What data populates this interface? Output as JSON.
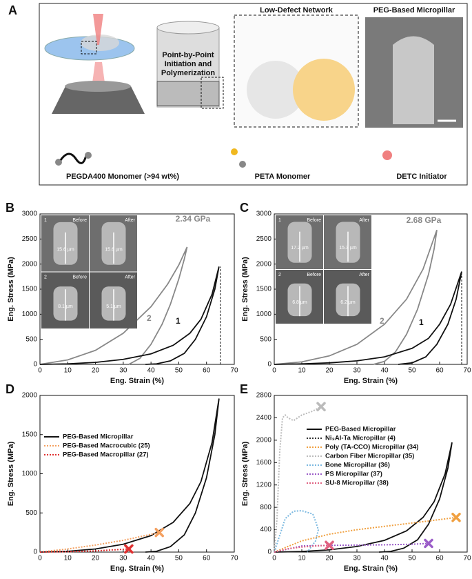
{
  "panel_a": {
    "label": "A",
    "texts": {
      "point_by_point": [
        "Point-by-Point",
        "Initiation and",
        "Polymerization"
      ],
      "network": "Low-Defect Network",
      "sem": "PEG-Based Micropillar",
      "pegda": "PEGDA400 Monomer (>94 wt%)",
      "peta": "PETA Monomer",
      "detc": "DETC Initiator"
    }
  },
  "chart_data": [
    {
      "type": "line",
      "label": "B",
      "xlabel": "Eng. Strain (%)",
      "ylabel": "Eng. Stress (MPa)",
      "xlim": [
        0,
        70
      ],
      "xticks": [
        0,
        10,
        20,
        30,
        40,
        50,
        60,
        70
      ],
      "ylim": [
        0,
        3000
      ],
      "yticks": [
        0,
        500,
        1000,
        1500,
        2000,
        2500,
        3000
      ],
      "annotation": "2.34 GPa",
      "vline": 65,
      "inset": {
        "rows": [
          {
            "index": "1",
            "before": "Before",
            "after": "After",
            "sizes": [
              "15.6 µm",
              "15.6 µm"
            ]
          },
          {
            "index": "2",
            "before": "Before",
            "after": "After",
            "sizes": [
              "8.1 µm",
              "5.1 µm"
            ]
          }
        ]
      },
      "series": [
        {
          "name": "2",
          "color": "#888888",
          "dash": "solid",
          "x": [
            0,
            10,
            20,
            30,
            40,
            46,
            50,
            53,
            52,
            50,
            47,
            44,
            40,
            36,
            32
          ],
          "values": [
            0,
            90,
            280,
            620,
            1150,
            1600,
            1980,
            2340,
            2100,
            1700,
            1200,
            800,
            400,
            120,
            0
          ]
        },
        {
          "name": "1",
          "color": "#111111",
          "dash": "solid",
          "x": [
            0,
            10,
            20,
            30,
            40,
            48,
            54,
            58,
            62,
            64.5,
            63,
            60,
            56,
            52,
            47,
            42,
            38
          ],
          "values": [
            0,
            10,
            40,
            100,
            210,
            380,
            620,
            900,
            1400,
            1950,
            1500,
            950,
            500,
            220,
            70,
            10,
            0
          ]
        }
      ]
    },
    {
      "type": "line",
      "label": "C",
      "xlabel": "Eng. Strain (%)",
      "ylabel": "Eng. Stress (MPa)",
      "xlim": [
        0,
        70
      ],
      "xticks": [
        0,
        10,
        20,
        30,
        40,
        50,
        60,
        70
      ],
      "ylim": [
        0,
        3000
      ],
      "yticks": [
        0,
        500,
        1000,
        1500,
        2000,
        2500,
        3000
      ],
      "annotation": "2.68 GPa",
      "vline": 68,
      "inset": {
        "rows": [
          {
            "index": "1",
            "before": "Before",
            "after": "After",
            "sizes": [
              "17.2 µm",
              "15.3 µm"
            ]
          },
          {
            "index": "2",
            "before": "Before",
            "after": "After",
            "sizes": [
              "6.8 µm",
              "6.2 µm"
            ]
          }
        ]
      },
      "series": [
        {
          "name": "2",
          "color": "#888888",
          "dash": "solid",
          "x": [
            0,
            10,
            20,
            30,
            40,
            48,
            54,
            59,
            58,
            56,
            52,
            48,
            44,
            40,
            36
          ],
          "values": [
            0,
            50,
            170,
            400,
            800,
            1300,
            1900,
            2680,
            2300,
            1800,
            1100,
            600,
            250,
            60,
            0
          ]
        },
        {
          "name": "1",
          "color": "#111111",
          "dash": "solid",
          "x": [
            0,
            10,
            20,
            30,
            40,
            50,
            56,
            60,
            64,
            68,
            66,
            63,
            59,
            55,
            50,
            45
          ],
          "values": [
            0,
            10,
            30,
            70,
            150,
            320,
            520,
            800,
            1200,
            1850,
            1300,
            800,
            400,
            150,
            30,
            0
          ]
        }
      ]
    },
    {
      "type": "line",
      "label": "D",
      "legend": true,
      "xlabel": "Eng. Strain (%)",
      "ylabel": "Eng. Stress (MPa)",
      "xlim": [
        0,
        70
      ],
      "xticks": [
        0,
        10,
        20,
        30,
        40,
        50,
        60,
        70
      ],
      "ylim": [
        0,
        2000
      ],
      "yticks": [
        0,
        500,
        1000,
        1500,
        2000
      ],
      "series": [
        {
          "name": "PEG-Based Micropillar",
          "color": "#111111",
          "dash": "solid",
          "x": [
            0,
            10,
            20,
            30,
            40,
            48,
            54,
            58,
            62,
            64.5,
            63,
            60,
            56,
            52,
            47,
            42,
            38
          ],
          "values": [
            0,
            10,
            40,
            100,
            210,
            380,
            620,
            900,
            1400,
            1960,
            1500,
            950,
            500,
            220,
            70,
            10,
            0
          ]
        },
        {
          "name": "PEG-Based Macrocubic (25)",
          "color": "#f4a060",
          "dash": "dotted",
          "end_marker": true,
          "x": [
            0,
            10,
            20,
            30,
            43
          ],
          "values": [
            0,
            40,
            90,
            150,
            250
          ]
        },
        {
          "name": "PEG-Based Macropillar (27)",
          "color": "#e03030",
          "dash": "dotted",
          "end_marker": true,
          "x": [
            0,
            10,
            20,
            32
          ],
          "values": [
            0,
            5,
            15,
            40
          ]
        }
      ]
    },
    {
      "type": "line",
      "label": "E",
      "legend": true,
      "xlabel": "Eng. Strain (%)",
      "ylabel": "Eng. Stress (MPa)",
      "xlim": [
        0,
        70
      ],
      "xticks": [
        0,
        10,
        20,
        30,
        40,
        50,
        60,
        70
      ],
      "ylim": [
        0,
        2800
      ],
      "yticks": [
        0,
        400,
        800,
        1200,
        1600,
        2000,
        2400,
        2800
      ],
      "series": [
        {
          "name": "PEG-Based Micropillar",
          "color": "#111111",
          "dash": "solid",
          "x": [
            0,
            10,
            20,
            30,
            40,
            48,
            54,
            58,
            62,
            64.5,
            63,
            60,
            56,
            52,
            47,
            42,
            38
          ],
          "values": [
            0,
            10,
            40,
            100,
            210,
            380,
            620,
            900,
            1400,
            1960,
            1500,
            950,
            500,
            220,
            70,
            10,
            0
          ]
        },
        {
          "name": "Ni₃Al-Ta Micropillar (4)",
          "color": "#333333",
          "dash": "dotted",
          "x": [
            0,
            0.5
          ],
          "values": [
            0,
            50
          ]
        },
        {
          "name": "Poly (TA-CCO) Micropillar (34)",
          "color": "#f0a040",
          "dash": "dotted",
          "end_marker": true,
          "x": [
            0,
            10,
            20,
            30,
            40,
            50,
            60,
            66
          ],
          "values": [
            0,
            200,
            320,
            400,
            460,
            520,
            580,
            620
          ]
        },
        {
          "name": "Carbon Fiber Micropillar (35)",
          "color": "#bbbbbb",
          "dash": "dotted",
          "end_marker": true,
          "x": [
            0,
            1,
            2,
            3,
            4,
            5,
            7,
            10,
            14,
            17
          ],
          "values": [
            0,
            600,
            1800,
            2400,
            2450,
            2400,
            2350,
            2450,
            2520,
            2600
          ]
        },
        {
          "name": "Bone Micropillar (36)",
          "color": "#7ab8e0",
          "dash": "dotted",
          "x": [
            0,
            2,
            4,
            7,
            10,
            14,
            15,
            16,
            15,
            12
          ],
          "values": [
            0,
            300,
            600,
            730,
            740,
            680,
            550,
            400,
            200,
            0
          ]
        },
        {
          "name": "PS Micropillar (37)",
          "color": "#9a5cc8",
          "dash": "dotted",
          "end_marker": true,
          "x": [
            0,
            10,
            20,
            30,
            40,
            50,
            56
          ],
          "values": [
            0,
            110,
            120,
            125,
            130,
            140,
            155
          ]
        },
        {
          "name": "SU-8 Micropillar (38)",
          "color": "#e06080",
          "dash": "dotted",
          "end_marker": true,
          "x": [
            0,
            5,
            10,
            15,
            20
          ],
          "values": [
            0,
            60,
            90,
            110,
            120
          ]
        }
      ]
    }
  ]
}
